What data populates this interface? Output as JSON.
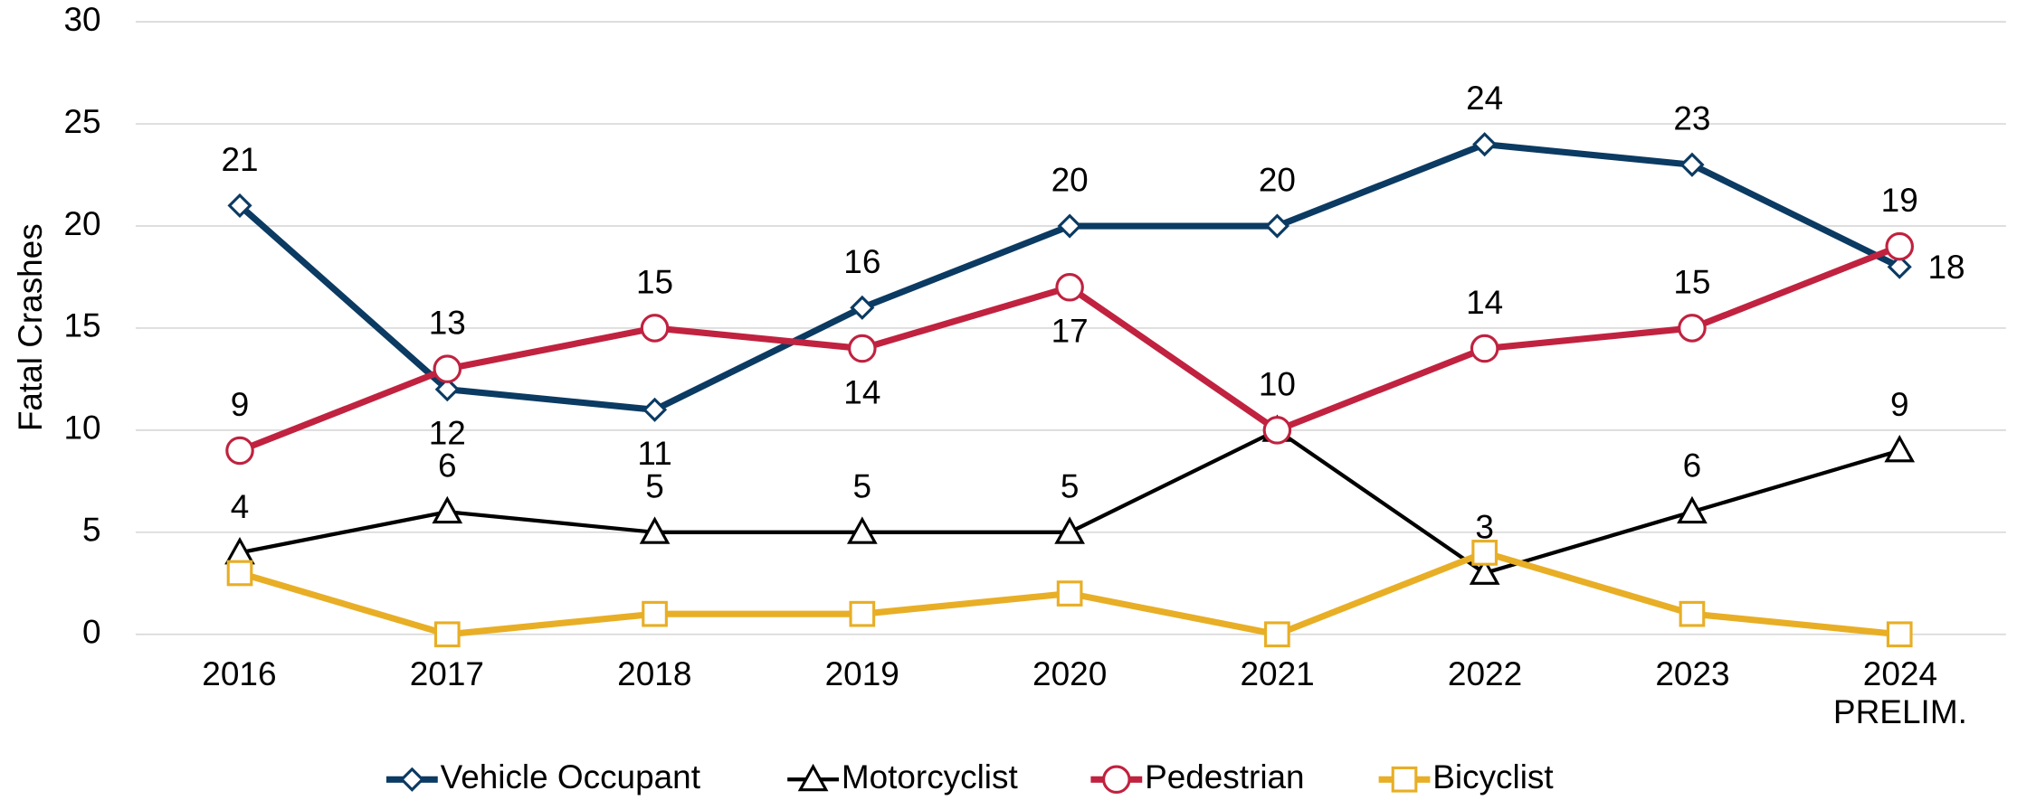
{
  "chart_data": {
    "type": "line",
    "y_label": "Fatal Crashes",
    "categories": [
      "2016",
      "2017",
      "2018",
      "2019",
      "2020",
      "2021",
      "2022",
      "2023",
      "2024\nPRELIM."
    ],
    "series": [
      {
        "name": "Vehicle Occupant",
        "color": "#0b3a62",
        "marker": "diamond",
        "values": [
          21,
          12,
          11,
          16,
          20,
          20,
          24,
          23,
          18
        ]
      },
      {
        "name": "Motorcyclist",
        "color": "#000000",
        "marker": "triangle",
        "values": [
          4,
          6,
          5,
          5,
          5,
          10,
          3,
          6,
          9
        ]
      },
      {
        "name": "Pedestrian",
        "color": "#c0223f",
        "marker": "circle",
        "values": [
          9,
          13,
          15,
          14,
          17,
          10,
          14,
          15,
          19
        ]
      },
      {
        "name": "Bicyclist",
        "color": "#e8ae25",
        "marker": "square",
        "values": [
          3,
          0,
          1,
          1,
          2,
          0,
          4,
          1,
          0
        ]
      }
    ],
    "ylim": [
      0,
      30
    ],
    "yticks": [
      0,
      5,
      10,
      15,
      20,
      25,
      30
    ],
    "grid": true,
    "legend": "bottom"
  }
}
